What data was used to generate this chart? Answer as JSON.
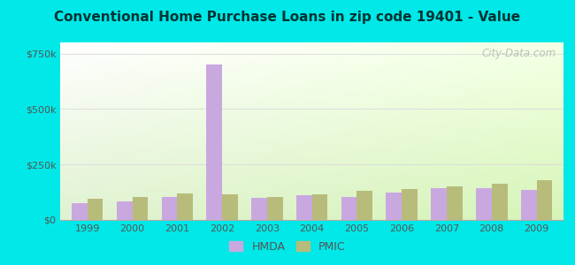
{
  "title": "Conventional Home Purchase Loans in zip code 19401 - Value",
  "years": [
    1999,
    2000,
    2001,
    2002,
    2003,
    2004,
    2005,
    2006,
    2007,
    2008,
    2009
  ],
  "hmda_values": [
    75000,
    85000,
    105000,
    700000,
    100000,
    110000,
    105000,
    125000,
    145000,
    145000,
    135000
  ],
  "pmic_values": [
    95000,
    105000,
    120000,
    115000,
    105000,
    115000,
    130000,
    140000,
    150000,
    165000,
    180000
  ],
  "hmda_color": "#c9a8e0",
  "pmic_color": "#b8bc7a",
  "bar_width": 0.35,
  "ylim": [
    0,
    800000
  ],
  "yticks": [
    0,
    250000,
    500000,
    750000
  ],
  "ytick_labels": [
    "$0",
    "$250k",
    "$500k",
    "$750k"
  ],
  "background_outer": "#00e8e8",
  "title_fontsize": 11,
  "title_color": "#003333",
  "watermark": "City-Data.com",
  "legend_hmda": "HMDA",
  "legend_pmic": "PMIC"
}
